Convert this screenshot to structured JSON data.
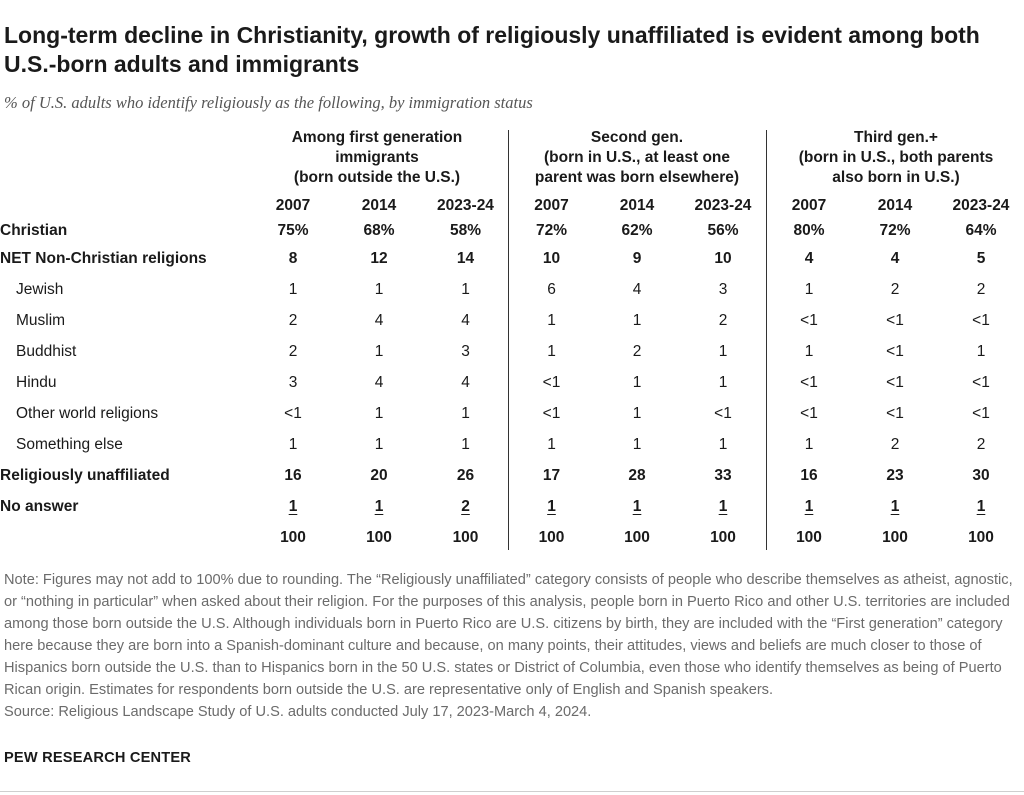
{
  "title": "Long-term decline in Christianity, growth of religiously unaffiliated is evident among both U.S.-born adults and immigrants",
  "subtitle": "% of U.S. adults who identify religiously as the following, by immigration status",
  "chart_data": {
    "type": "table",
    "title": "Long-term decline in Christianity, growth of religiously unaffiliated is evident among both U.S.-born adults and immigrants",
    "subtitle": "% of U.S. adults who identify religiously as the following, by immigration status",
    "groups": [
      {
        "lines": [
          "Among first generation",
          "immigrants",
          "(born outside the U.S.)"
        ],
        "years": [
          "2007",
          "2014",
          "2023-24"
        ]
      },
      {
        "lines": [
          "Second gen.",
          "(born in U.S., at least one",
          "parent was born elsewhere)"
        ],
        "years": [
          "2007",
          "2014",
          "2023-24"
        ]
      },
      {
        "lines": [
          "Third gen.+",
          "(born in U.S., both parents",
          "also born in U.S.)"
        ],
        "years": [
          "2007",
          "2014",
          "2023-24"
        ]
      }
    ],
    "rows": [
      {
        "label": "Christian",
        "values": [
          "75%",
          "68%",
          "58%",
          "72%",
          "62%",
          "56%",
          "80%",
          "72%",
          "64%"
        ]
      },
      {
        "label": "NET Non-Christian religions",
        "values": [
          "8",
          "12",
          "14",
          "10",
          "9",
          "10",
          "4",
          "4",
          "5"
        ]
      },
      {
        "label": "Jewish",
        "values": [
          "1",
          "1",
          "1",
          "6",
          "4",
          "3",
          "1",
          "2",
          "2"
        ]
      },
      {
        "label": "Muslim",
        "values": [
          "2",
          "4",
          "4",
          "1",
          "1",
          "2",
          "<1",
          "<1",
          "<1"
        ]
      },
      {
        "label": "Buddhist",
        "values": [
          "2",
          "1",
          "3",
          "1",
          "2",
          "1",
          "1",
          "<1",
          "1"
        ]
      },
      {
        "label": "Hindu",
        "values": [
          "3",
          "4",
          "4",
          "<1",
          "1",
          "1",
          "<1",
          "<1",
          "<1"
        ]
      },
      {
        "label": "Other world religions",
        "values": [
          "<1",
          "1",
          "1",
          "<1",
          "1",
          "<1",
          "<1",
          "<1",
          "<1"
        ]
      },
      {
        "label": "Something else",
        "values": [
          "1",
          "1",
          "1",
          "1",
          "1",
          "1",
          "1",
          "2",
          "2"
        ]
      },
      {
        "label": "Religiously unaffiliated",
        "values": [
          "16",
          "20",
          "26",
          "17",
          "28",
          "33",
          "16",
          "23",
          "30"
        ]
      },
      {
        "label": "No answer",
        "values": [
          "1",
          "1",
          "2",
          "1",
          "1",
          "1",
          "1",
          "1",
          "1"
        ]
      },
      {
        "label": "",
        "values": [
          "100",
          "100",
          "100",
          "100",
          "100",
          "100",
          "100",
          "100",
          "100"
        ]
      }
    ]
  },
  "note": "Note: Figures may not add to 100% due to rounding. The “Religiously unaffiliated” category consists of people who describe themselves as atheist, agnostic, or “nothing in particular” when asked about their religion. For the purposes of this analysis, people born in Puerto Rico and other U.S. territories are included among those born outside the U.S. Although individuals born in Puerto Rico are U.S. citizens by birth, they are included with the “First generation” category here because they are born into a Spanish-dominant culture and because, on many points, their attitudes, views and beliefs are much closer to those of Hispanics born outside the U.S. than to Hispanics born in the 50 U.S. states or District of Columbia, even those who identify themselves as being of Puerto Rican origin. Estimates for respondents born outside the U.S. are representative only of English and Spanish speakers.",
  "source": "Source: Religious Landscape Study of U.S. adults conducted July 17, 2023-March 4, 2024.",
  "brand": "PEW RESEARCH CENTER"
}
